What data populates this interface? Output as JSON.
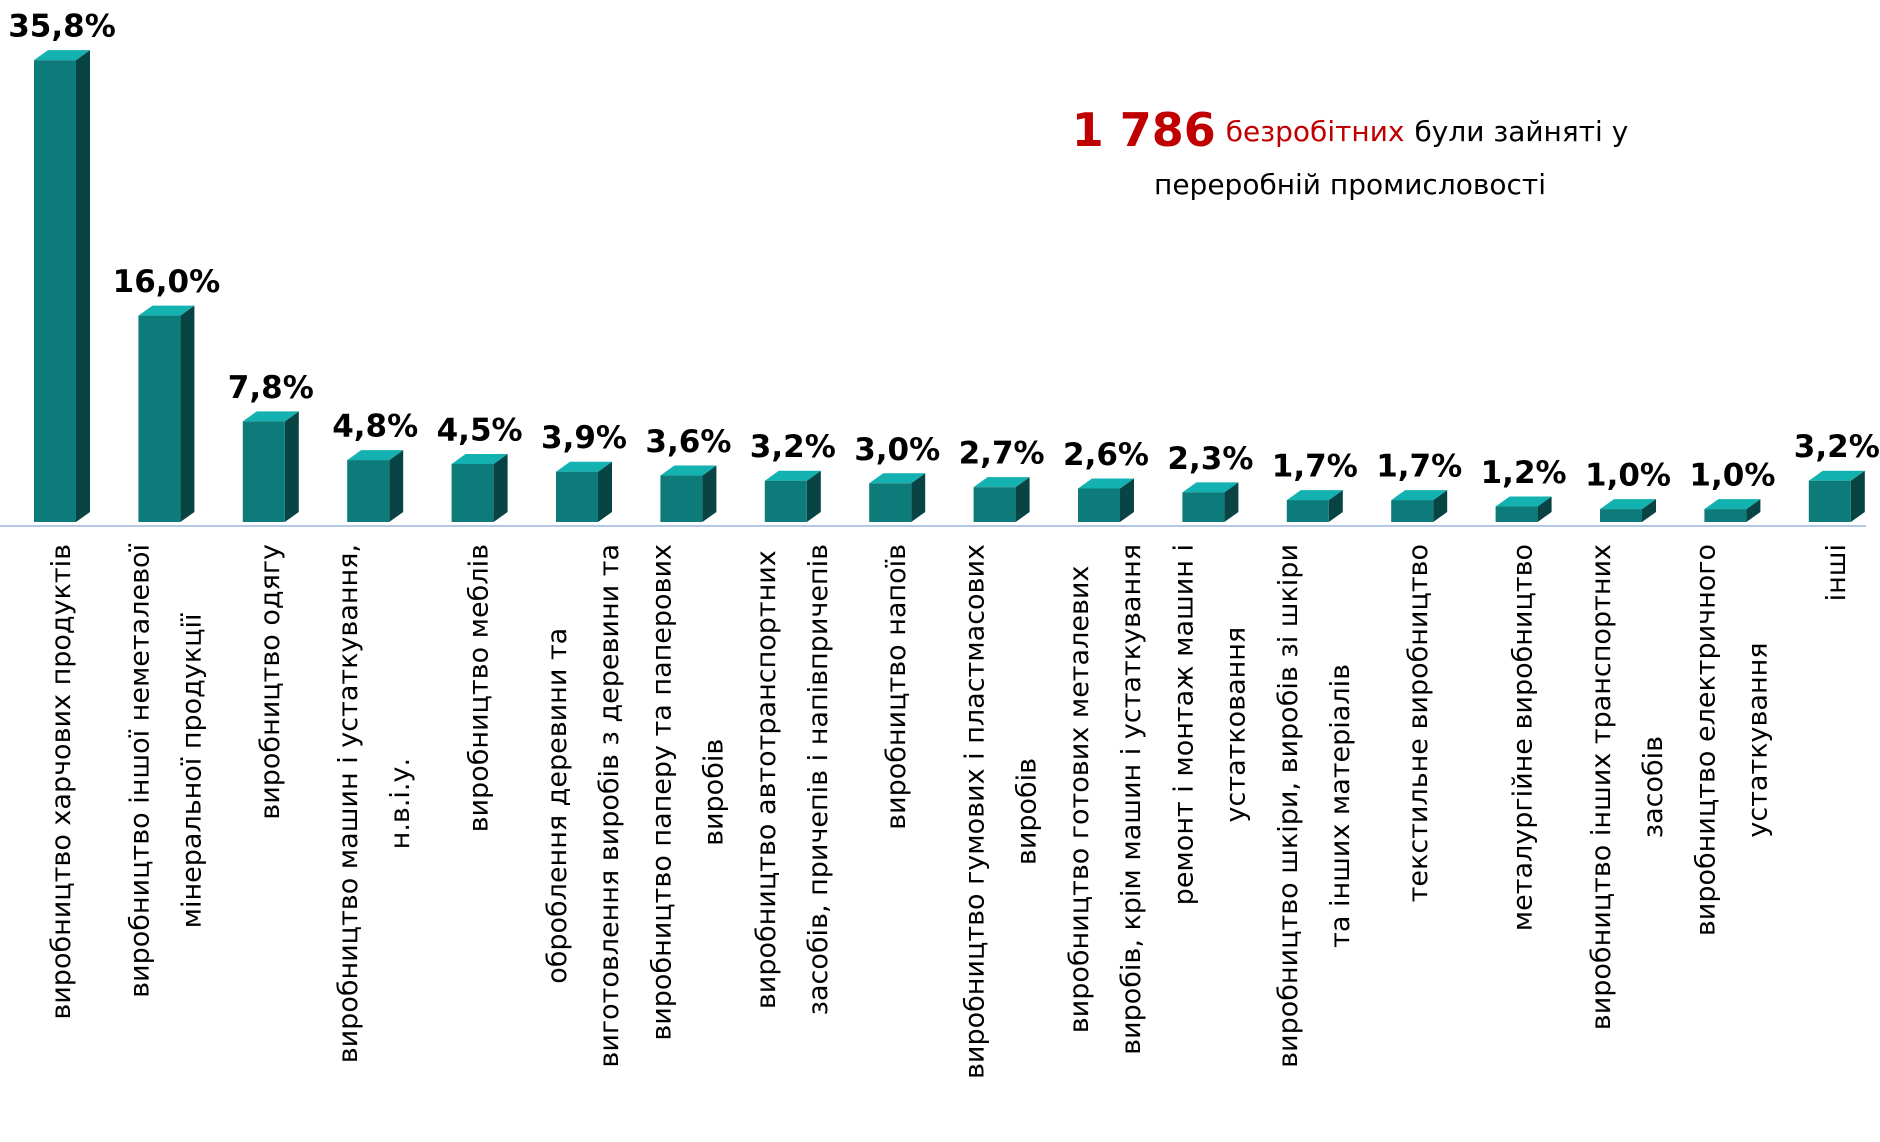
{
  "chart_data": {
    "type": "bar3d",
    "color": "#0d7b7a",
    "annotation": {
      "number": "1 786",
      "word": "безробітних",
      "rest": "були зайняті у",
      "line2": "переробній промисловості",
      "highlight_color": "#c00000"
    },
    "categories": [
      "виробництво харчових продуктів",
      "виробництво іншої неметалевої\nмінеральної продукції",
      "виробництво одягу",
      "виробництво машин і устаткування,\nн.в.і.у.",
      "виробництво меблів",
      "оброблення деревини та\nвиготовлення виробів з деревини та",
      "виробництво паперу та паперових\nвиробів",
      "виробництво автотранспортних\nзасобів, причепів і напівпричепів",
      "виробництво напоїв",
      "виробництво гумових і пластмасових\nвиробів",
      "виробництво готових металевих\nвиробів, крім машин і устаткування",
      "ремонт і монтаж машин і\nустатковання",
      "виробництво шкіри, виробів зі шкіри\nта інших матеріалів",
      "текстильне виробництво",
      "металургійне виробництво",
      "виробництво інших транспортних\nзасобів",
      "виробництво електричного\nустаткування",
      "інші"
    ],
    "values": [
      35.8,
      16.0,
      7.8,
      4.8,
      4.5,
      3.9,
      3.6,
      3.2,
      3.0,
      2.7,
      2.6,
      2.3,
      1.7,
      1.7,
      1.2,
      1.0,
      1.0,
      3.2
    ],
    "value_labels": [
      "35,8%",
      "16,0%",
      "7,8%",
      "4,8%",
      "4,5%",
      "3,9%",
      "3,6%",
      "3,2%",
      "3,0%",
      "2,7%",
      "2,6%",
      "2,3%",
      "1,7%",
      "1,7%",
      "1,2%",
      "1,0%",
      "1,0%",
      "3,2%"
    ]
  }
}
